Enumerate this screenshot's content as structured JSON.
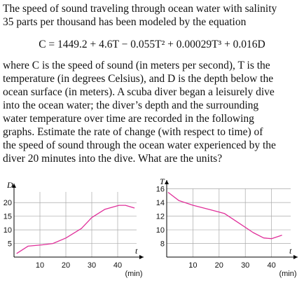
{
  "problem": {
    "intro": [
      "The speed of sound traveling through ocean water with salinity",
      "35 parts per thousand has been modeled by the equation"
    ],
    "equation": "C = 1449.2 + 4.6T − 0.055T² + 0.00029T³ + 0.016D",
    "body": [
      "where C is the speed of sound (in meters per second), T is the",
      "temperature (in degrees Celsius), and D is the depth below the",
      "ocean surface (in meters). A scuba diver began a leisurely dive",
      "into the ocean water; the diver’s depth and the surrounding",
      "water temperature over time are recorded in the following",
      "graphs. Estimate the rate of change (with respect to time) of",
      "the speed of sound through the ocean water experienced by the",
      "diver 20 minutes into the dive. What are the units?"
    ]
  },
  "graphs": [
    {
      "y_label": "D",
      "x_label": "t",
      "x_unit": "(min)",
      "color": "#e0309a",
      "xlim": [
        0,
        50
      ],
      "ylim": [
        0,
        27
      ],
      "xticks": [
        10,
        20,
        30,
        40
      ],
      "yticks": [
        5,
        10,
        15,
        20
      ],
      "x": [
        1,
        5.4,
        11,
        15,
        20,
        26,
        30,
        35,
        40.5,
        43,
        46.5
      ],
      "y": [
        1.3,
        4,
        4.5,
        5,
        7,
        10.5,
        14.5,
        17.5,
        19,
        19,
        18
      ]
    },
    {
      "y_label": "T",
      "x_label": "t",
      "x_unit": "(min)",
      "color": "#e0309a",
      "xlim": [
        0,
        50
      ],
      "ylim": [
        6,
        17.3
      ],
      "xticks": [
        10,
        20,
        30,
        40
      ],
      "yticks": [
        8,
        10,
        12,
        14,
        16
      ],
      "x": [
        0.5,
        4.6,
        10,
        17,
        22,
        27.5,
        33,
        37,
        40,
        44
      ],
      "y": [
        15.5,
        14.3,
        13.6,
        12.9,
        12.4,
        11,
        9.6,
        8.8,
        8.7,
        9.2
      ]
    }
  ]
}
